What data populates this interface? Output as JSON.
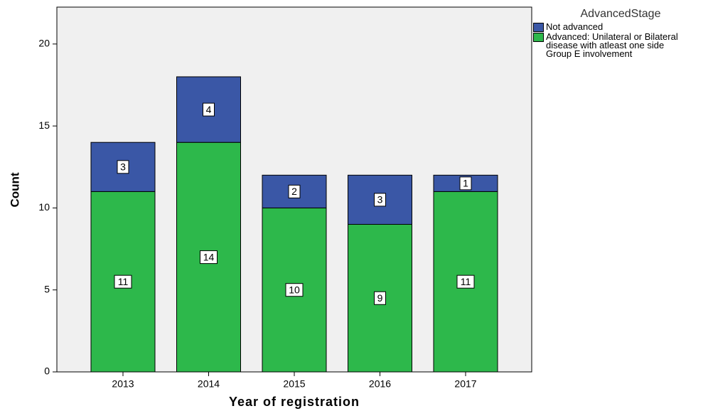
{
  "chart_data": {
    "type": "stacked_bar",
    "x_label": "Year of registration",
    "y_label": "Count",
    "legend_title": "AdvancedStage",
    "categories": [
      "2013",
      "2014",
      "2015",
      "2016",
      "2017"
    ],
    "series": [
      {
        "name": "Advanced: Unilateral or Bilateral disease with atleast one side Group E involvement",
        "color": "#2db84b",
        "values": [
          11,
          14,
          10,
          9,
          11
        ]
      },
      {
        "name": "Not advanced",
        "color": "#3a57a6",
        "values": [
          3,
          4,
          2,
          3,
          1
        ]
      }
    ],
    "ylim": [
      0,
      22.25
    ],
    "yticks": [
      0,
      5,
      10,
      15,
      20
    ],
    "legend": "right"
  }
}
